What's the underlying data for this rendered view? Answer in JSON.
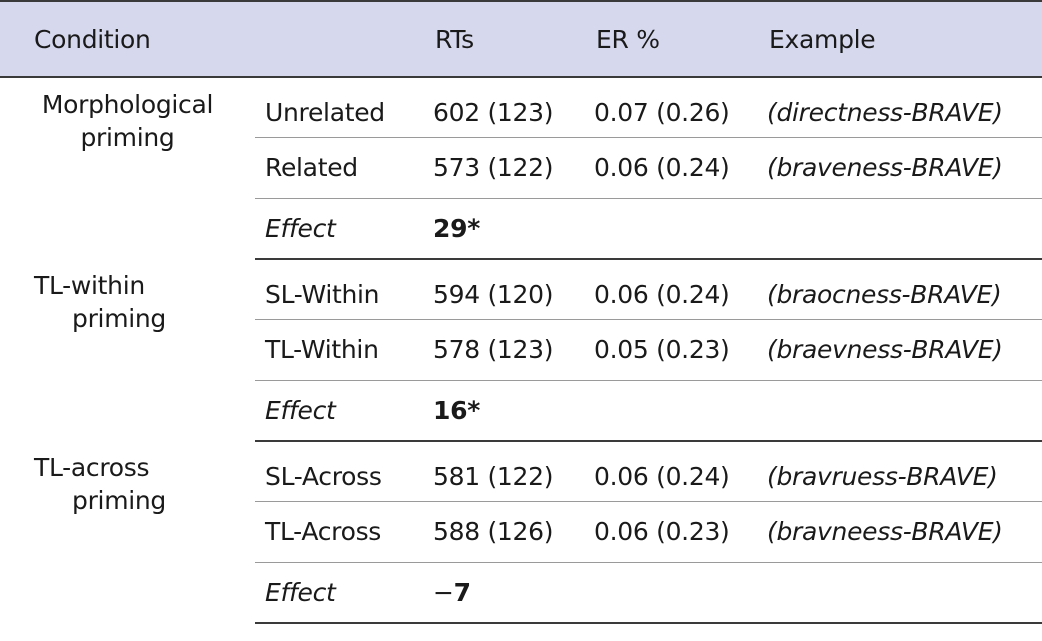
{
  "header": {
    "condition": "Condition",
    "rts": "RTs",
    "er": "ER %",
    "example": "Example"
  },
  "groups": [
    {
      "condition_line1": "Morphological",
      "condition_line2": "priming",
      "rows": [
        {
          "label": "Unrelated",
          "rt": "602 (123)",
          "er": "0.07 (0.26)",
          "example": "(directness-BRAVE)"
        },
        {
          "label": "Related",
          "rt": "573 (122)",
          "er": "0.06 (0.24)",
          "example": "(braveness-BRAVE)"
        }
      ],
      "effect_label": "Effect",
      "effect_sign": "",
      "effect_value": "29*"
    },
    {
      "condition_line1": "TL-within",
      "condition_line2": "priming",
      "rows": [
        {
          "label": "SL-Within",
          "rt": "594 (120)",
          "er": "0.06 (0.24)",
          "example": "(braocness-BRAVE)"
        },
        {
          "label": "TL-Within",
          "rt": "578 (123)",
          "er": "0.05 (0.23)",
          "example": "(braevness-BRAVE)"
        }
      ],
      "effect_label": "Effect",
      "effect_sign": "",
      "effect_value": "16*"
    },
    {
      "condition_line1": "TL-across",
      "condition_line2": "priming",
      "rows": [
        {
          "label": "SL-Across",
          "rt": "581 (122)",
          "er": "0.06 (0.24)",
          "example": "(bravruess-BRAVE)"
        },
        {
          "label": "TL-Across",
          "rt": "588 (126)",
          "er": "0.06 (0.23)",
          "example": "(bravneess-BRAVE)"
        }
      ],
      "effect_label": "Effect",
      "effect_sign": "−",
      "effect_value": "7"
    }
  ]
}
